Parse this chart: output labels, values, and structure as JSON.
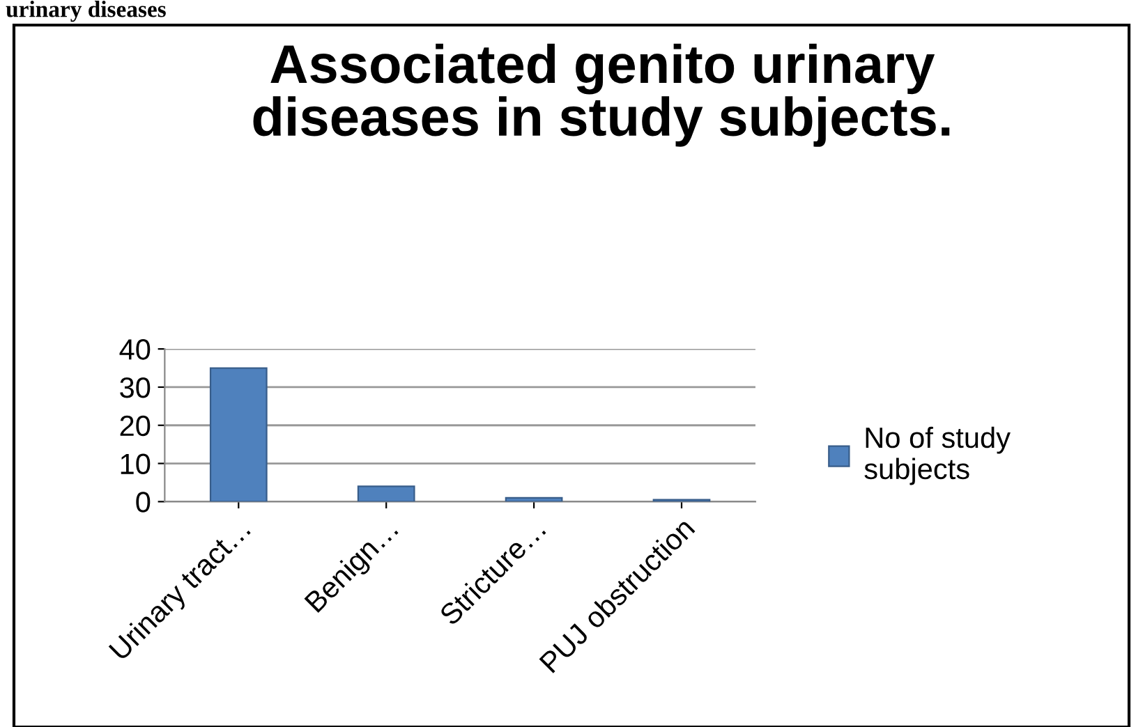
{
  "chart_data": {
    "type": "bar",
    "title": "Associated genito urinary\ndiseases in study subjects.",
    "annotations": [
      "urinary diseases"
    ],
    "categories": [
      "Urinary tract…",
      "Benign…",
      "Stricture…",
      "PUJ obstruction"
    ],
    "series": [
      {
        "name": "No of study\nsubjects",
        "color": "#4f81bd",
        "values": [
          35,
          4,
          1,
          0.5
        ]
      }
    ],
    "ylim": [
      0,
      40
    ],
    "yticks": [
      0,
      10,
      20,
      30,
      40
    ],
    "grid": "y",
    "legend": "right"
  }
}
